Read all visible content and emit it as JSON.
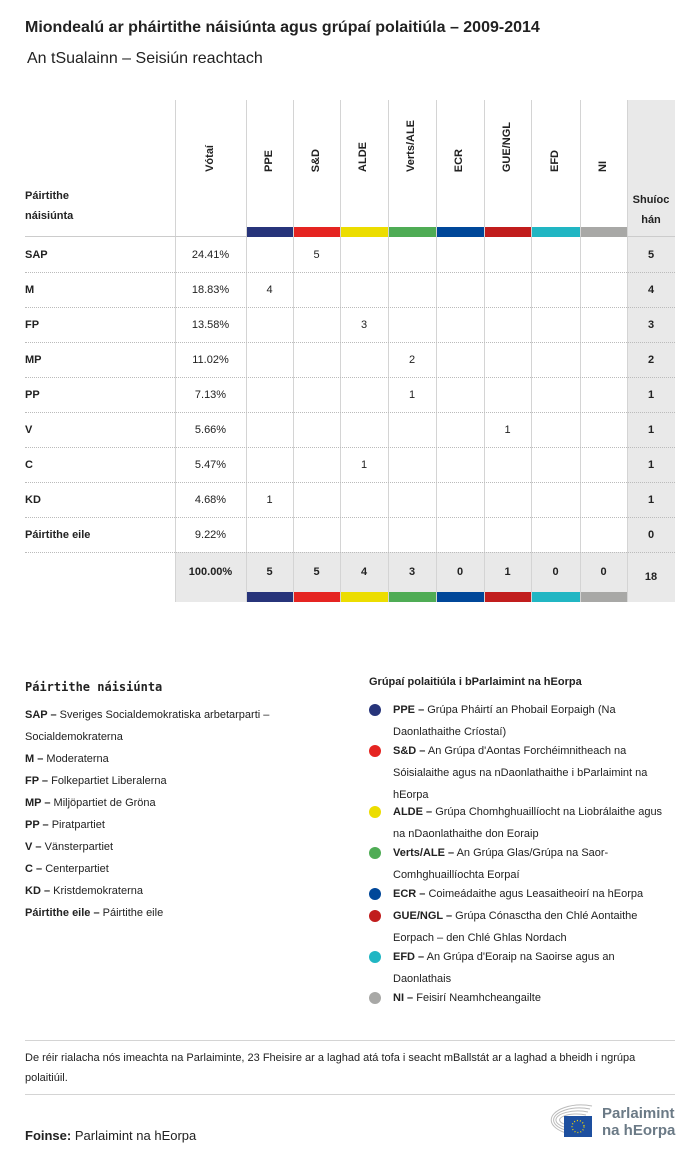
{
  "title": "Miondealú ar pháirtithe náisiúnta agus grúpaí polaitiúla – 2009-2014",
  "subtitle": "An tSualainn – Seisiún reachtach",
  "table": {
    "party_header": "Páirtithe náisiúnta",
    "votes_header": "Vótaí",
    "seats_header": "Shuíochán",
    "groups": [
      {
        "label": "PPE",
        "color": "#27347a"
      },
      {
        "label": "S&D",
        "color": "#e52421"
      },
      {
        "label": "ALDE",
        "color": "#ecdd00"
      },
      {
        "label": "Verts/ALE",
        "color": "#4fac55"
      },
      {
        "label": "ECR",
        "color": "#004799"
      },
      {
        "label": "GUE/NGL",
        "color": "#c11d1d"
      },
      {
        "label": "EFD",
        "color": "#21b6c3"
      },
      {
        "label": "NI",
        "color": "#a8a8a6"
      }
    ],
    "rows": [
      {
        "party": "SAP",
        "votes": "24.41%",
        "cells": [
          "",
          "5",
          "",
          "",
          "",
          "",
          "",
          ""
        ],
        "seats": "5"
      },
      {
        "party": "M",
        "votes": "18.83%",
        "cells": [
          "4",
          "",
          "",
          "",
          "",
          "",
          "",
          ""
        ],
        "seats": "4"
      },
      {
        "party": "FP",
        "votes": "13.58%",
        "cells": [
          "",
          "",
          "3",
          "",
          "",
          "",
          "",
          ""
        ],
        "seats": "3"
      },
      {
        "party": "MP",
        "votes": "11.02%",
        "cells": [
          "",
          "",
          "",
          "2",
          "",
          "",
          "",
          ""
        ],
        "seats": "2"
      },
      {
        "party": "PP",
        "votes": "7.13%",
        "cells": [
          "",
          "",
          "",
          "1",
          "",
          "",
          "",
          ""
        ],
        "seats": "1"
      },
      {
        "party": "V",
        "votes": "5.66%",
        "cells": [
          "",
          "",
          "",
          "",
          "",
          "1",
          "",
          ""
        ],
        "seats": "1"
      },
      {
        "party": "C",
        "votes": "5.47%",
        "cells": [
          "",
          "",
          "1",
          "",
          "",
          "",
          "",
          ""
        ],
        "seats": "1"
      },
      {
        "party": "KD",
        "votes": "4.68%",
        "cells": [
          "1",
          "",
          "",
          "",
          "",
          "",
          "",
          ""
        ],
        "seats": "1"
      },
      {
        "party": "Páirtithe eile",
        "votes": "9.22%",
        "cells": [
          "",
          "",
          "",
          "",
          "",
          "",
          "",
          ""
        ],
        "seats": "0"
      }
    ],
    "totals": {
      "votes": "100.00%",
      "cells": [
        "5",
        "5",
        "4",
        "3",
        "0",
        "1",
        "0",
        "0"
      ],
      "seats": "18"
    }
  },
  "legend_parties": {
    "heading": "Páirtithe náisiúnta",
    "items": [
      {
        "abbr": "SAP –",
        "name": "Sveriges Socialdemokratiska arbetarparti – Socialdemokraterna"
      },
      {
        "abbr": "M –",
        "name": "Moderaterna"
      },
      {
        "abbr": "FP –",
        "name": "Folkepartiet Liberalerna"
      },
      {
        "abbr": "MP –",
        "name": "Miljöpartiet de Gröna"
      },
      {
        "abbr": "PP –",
        "name": "Piratpartiet"
      },
      {
        "abbr": "V –",
        "name": "Vänsterpartiet"
      },
      {
        "abbr": "C –",
        "name": "Centerpartiet"
      },
      {
        "abbr": "KD –",
        "name": "Kristdemokraterna"
      },
      {
        "abbr": "Páirtithe eile –",
        "name": "Páirtithe eile"
      }
    ]
  },
  "legend_groups": {
    "heading": "Grúpaí polaitiúla i bParlaimint na hEorpa",
    "items": [
      {
        "abbr": "PPE –",
        "name": "Grúpa Pháirtí an Phobail Eorpaigh (Na Daonlathaithe Críostaí)",
        "color": "#27347a"
      },
      {
        "abbr": "S&D –",
        "name": "An Grúpa d'Aontas Forchéimnitheach na Sóisialaithe agus na nDaonlathaithe i bParlaimint na hEorpa",
        "color": "#e52421"
      },
      {
        "abbr": "ALDE –",
        "name": "Grúpa Chomhghuaillíocht na Liobrálaithe agus na nDaonlathaithe don Eoraip",
        "color": "#ecdd00"
      },
      {
        "abbr": "Verts/ALE –",
        "name": "An Grúpa Glas/Grúpa na Saor-Comhghuaillíochta Eorpaí",
        "color": "#4fac55"
      },
      {
        "abbr": "ECR –",
        "name": "Coimeádaithe agus Leasaitheoirí na hEorpa",
        "color": "#004799"
      },
      {
        "abbr": "GUE/NGL –",
        "name": "Grúpa Cónasctha den Chlé Aontaithe Eorpach – den Chlé Ghlas Nordach",
        "color": "#c11d1d"
      },
      {
        "abbr": "EFD –",
        "name": "An Grúpa d'Eoraip na Saoirse agus an Daonlathais",
        "color": "#21b6c3"
      },
      {
        "abbr": "NI –",
        "name": "Feisirí Neamhcheangailte",
        "color": "#a8a8a6"
      }
    ]
  },
  "note": "De réir rialacha nós imeachta na Parlaiminte, 23 Fheisire ar a laghad atá tofa i seacht mBallstát ar a laghad a bheidh i ngrúpa polaitiúil.",
  "source": {
    "label": "Foinse:",
    "value": "Parlaimint na hEorpa"
  },
  "logo": {
    "line1": "Parlaimint",
    "line2": "na hEorpa"
  }
}
